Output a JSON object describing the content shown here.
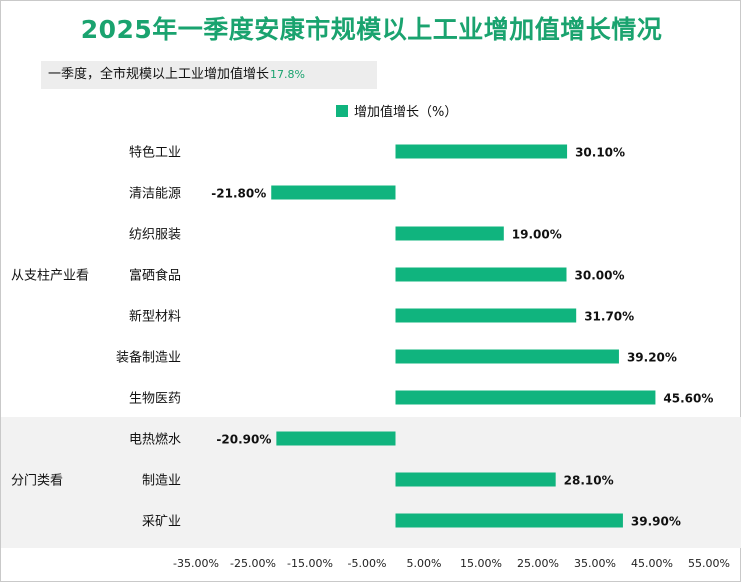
{
  "title": "2025年一季度安康市规模以上工业增加值增长情况",
  "summary": {
    "label": "一季度，全市规模以上工业增加值增长",
    "value": "17.8%"
  },
  "colors": {
    "bar": "#10b47e",
    "title": "#1aa36f",
    "band": "#f2f2f2"
  },
  "chart_data": {
    "type": "bar",
    "orientation": "horizontal",
    "legend": "增加值增长（%）",
    "legend_position": "top",
    "groups": [
      {
        "name": "从支柱产业看",
        "categories": [
          "特色工业",
          "清洁能源",
          "纺织服装",
          "富硒食品",
          "新型材料",
          "装备制造业",
          "生物医药"
        ]
      },
      {
        "name": "分门类看",
        "categories": [
          "电热燃水",
          "制造业",
          "采矿业"
        ]
      }
    ],
    "categories": [
      "特色工业",
      "清洁能源",
      "纺织服装",
      "富硒食品",
      "新型材料",
      "装备制造业",
      "生物医药",
      "电热燃水",
      "制造业",
      "采矿业"
    ],
    "values": [
      30.1,
      -21.8,
      19.0,
      30.0,
      31.7,
      39.2,
      45.6,
      -20.9,
      28.1,
      39.9
    ],
    "value_labels": [
      "30.10%",
      "-21.80%",
      "19.00%",
      "30.00%",
      "31.70%",
      "39.20%",
      "45.60%",
      "-20.90%",
      "28.10%",
      "39.90%"
    ],
    "xlim": [
      -35,
      55
    ],
    "x_ticks": [
      -35,
      -25,
      -15,
      -5,
      5,
      15,
      25,
      35,
      45,
      55
    ],
    "x_tick_labels": [
      "-35.00%",
      "-25.00%",
      "-15.00%",
      "-5.00%",
      "5.00%",
      "15.00%",
      "25.00%",
      "35.00%",
      "45.00%",
      "55.00%"
    ],
    "xlabel": "",
    "ylabel": "",
    "grid": false
  }
}
